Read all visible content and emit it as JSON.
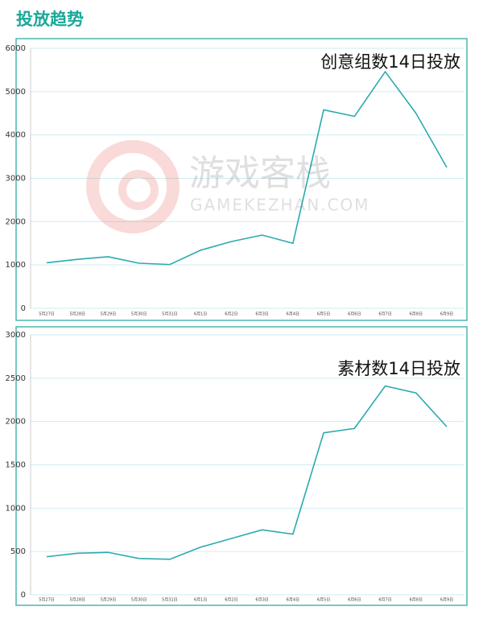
{
  "header": {
    "title": "投放趋势"
  },
  "watermark": {
    "text": "游戏客栈",
    "subtext": "GAMEKEZHAN.COM"
  },
  "chart_data": [
    {
      "type": "line",
      "title": "创意组数14日投放",
      "categories": [
        "5月27日",
        "5月28日",
        "5月29日",
        "5月30日",
        "5月31日",
        "6月1日",
        "6月2日",
        "6月3日",
        "6月4日",
        "6月5日",
        "6月6日",
        "6月7日",
        "6月8日",
        "6月9日"
      ],
      "values": [
        1050,
        1130,
        1190,
        1040,
        1010,
        1340,
        1540,
        1690,
        1500,
        4580,
        4430,
        5460,
        4500,
        3250
      ],
      "color": "#2aaab0",
      "ylim": [
        0,
        6000
      ],
      "yticks": [
        0,
        1000,
        2000,
        3000,
        4000,
        5000,
        6000
      ],
      "grid": true
    },
    {
      "type": "line",
      "title": "素材数14日投放",
      "categories": [
        "5月27日",
        "5月28日",
        "5月29日",
        "5月30日",
        "5月31日",
        "6月1日",
        "6月2日",
        "6月3日",
        "6月4日",
        "6月5日",
        "6月6日",
        "6月7日",
        "6月8日",
        "6月9日"
      ],
      "values": [
        440,
        480,
        490,
        420,
        410,
        550,
        650,
        750,
        700,
        1870,
        1920,
        2410,
        2330,
        1940
      ],
      "color": "#2aaab0",
      "ylim": [
        0,
        3000
      ],
      "yticks": [
        0,
        500,
        1000,
        1500,
        2000,
        2500,
        3000
      ],
      "grid": true
    }
  ]
}
